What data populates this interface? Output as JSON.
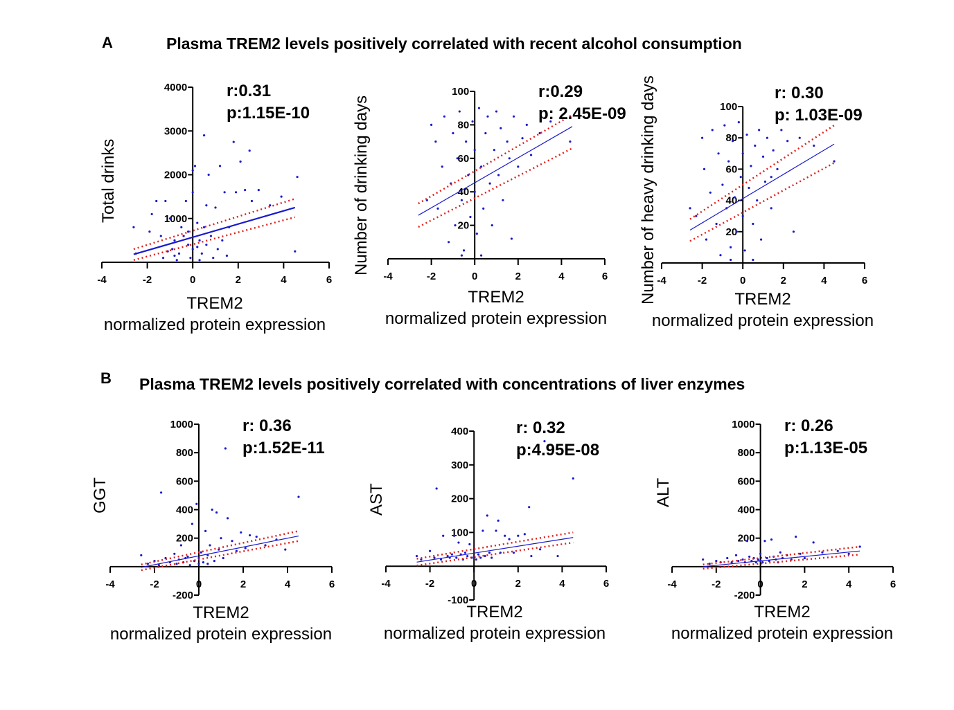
{
  "panels": {
    "A": {
      "letter": "A",
      "title": "Plasma TREM2 levels positively correlated with recent alcohol consumption"
    },
    "B": {
      "letter": "B",
      "title": "Plasma TREM2 levels positively correlated with concentrations of liver enzymes"
    }
  },
  "colors": {
    "points": "#1a1acc",
    "fit_line": "#1a1acc",
    "ci": "#e0201b",
    "axis": "#000000"
  },
  "chart_data": [
    {
      "type": "scatter",
      "panel": "A",
      "ylabel": "Total drinks",
      "xlabel": [
        "TREM2",
        "normalized protein expression"
      ],
      "stat_r": "r:0.31",
      "stat_p": "p:1.15E-10",
      "xlim": [
        -4,
        6
      ],
      "xticks": [
        -4,
        -2,
        0,
        2,
        4,
        6
      ],
      "ylim": [
        0,
        4000
      ],
      "yticks": [
        1000,
        2000,
        3000,
        4000
      ],
      "fit": [
        [
          -2.6,
          180
        ],
        [
          4.5,
          1250
        ]
      ],
      "ci_upper": [
        [
          -2.6,
          300
        ],
        [
          4.5,
          1450
        ]
      ],
      "ci_lower": [
        [
          -2.6,
          50
        ],
        [
          4.5,
          1030
        ]
      ],
      "points": [
        [
          -2.6,
          800
        ],
        [
          -2.5,
          200
        ],
        [
          -1.9,
          700
        ],
        [
          -1.8,
          1100
        ],
        [
          -1.6,
          1400
        ],
        [
          -1.4,
          600
        ],
        [
          -1.2,
          1400
        ],
        [
          -1,
          1000
        ],
        [
          -0.9,
          300
        ],
        [
          -0.8,
          500
        ],
        [
          -0.6,
          200
        ],
        [
          -0.5,
          800
        ],
        [
          -0.3,
          1400
        ],
        [
          -0.2,
          400
        ],
        [
          -0.1,
          100
        ],
        [
          0,
          2100
        ],
        [
          0,
          1600
        ],
        [
          0,
          300
        ],
        [
          0.1,
          2200
        ],
        [
          0.2,
          900
        ],
        [
          0.3,
          500
        ],
        [
          0.4,
          200
        ],
        [
          0.5,
          2900
        ],
        [
          0.6,
          1300
        ],
        [
          0.7,
          2000
        ],
        [
          0.8,
          600
        ],
        [
          1,
          1250
        ],
        [
          1.1,
          300
        ],
        [
          1.2,
          2200
        ],
        [
          1.4,
          1600
        ],
        [
          1.6,
          800
        ],
        [
          1.8,
          2750
        ],
        [
          1.9,
          1600
        ],
        [
          2.1,
          2300
        ],
        [
          2.3,
          1650
        ],
        [
          2.5,
          2550
        ],
        [
          2.6,
          1400
        ],
        [
          2.9,
          1650
        ],
        [
          3.4,
          1300
        ],
        [
          3.9,
          1500
        ],
        [
          4.5,
          250
        ],
        [
          4.6,
          1950
        ],
        [
          -0.7,
          50
        ],
        [
          0.3,
          50
        ],
        [
          -1.3,
          100
        ],
        [
          0.9,
          100
        ],
        [
          1.5,
          150
        ],
        [
          -0.4,
          600
        ],
        [
          0.6,
          400
        ],
        [
          -1.1,
          250
        ],
        [
          -0.2,
          700
        ],
        [
          0.2,
          350
        ],
        [
          -0.8,
          150
        ],
        [
          0.5,
          800
        ],
        [
          1.3,
          500
        ]
      ]
    },
    {
      "type": "scatter",
      "panel": "A",
      "ylabel": "Number of drinking days",
      "xlabel": [
        "TREM2",
        "normalized protein expression"
      ],
      "stat_r": "r:0.29",
      "stat_p": "p: 2.45E-09",
      "xlim": [
        -4,
        6
      ],
      "xticks": [
        -4,
        -2,
        0,
        2,
        4,
        6
      ],
      "ylim": [
        0,
        100
      ],
      "yticks": [
        20,
        40,
        60,
        80,
        100
      ],
      "fit": [
        [
          -2.6,
          26
        ],
        [
          4.5,
          79
        ]
      ],
      "ci_upper": [
        [
          -2.6,
          33
        ],
        [
          4.5,
          86
        ]
      ],
      "ci_lower": [
        [
          -2.6,
          19
        ],
        [
          4.5,
          66
        ]
      ],
      "points": [
        [
          -2,
          80
        ],
        [
          -1.8,
          70
        ],
        [
          -1.7,
          30
        ],
        [
          -1.5,
          55
        ],
        [
          -1.4,
          85
        ],
        [
          -1.2,
          10
        ],
        [
          -1.1,
          45
        ],
        [
          -1,
          75
        ],
        [
          -0.9,
          20
        ],
        [
          -0.8,
          60
        ],
        [
          -0.7,
          88
        ],
        [
          -0.6,
          35
        ],
        [
          -0.5,
          5
        ],
        [
          -0.4,
          70
        ],
        [
          -0.3,
          50
        ],
        [
          -0.2,
          25
        ],
        [
          -0.1,
          82
        ],
        [
          0,
          65
        ],
        [
          0,
          40
        ],
        [
          0.1,
          15
        ],
        [
          0.2,
          90
        ],
        [
          0.3,
          55
        ],
        [
          0.4,
          30
        ],
        [
          0.5,
          75
        ],
        [
          0.6,
          85
        ],
        [
          0.7,
          45
        ],
        [
          0.8,
          20
        ],
        [
          0.9,
          65
        ],
        [
          1,
          88
        ],
        [
          1.1,
          50
        ],
        [
          1.2,
          78
        ],
        [
          1.3,
          35
        ],
        [
          1.5,
          70
        ],
        [
          1.6,
          60
        ],
        [
          1.8,
          85
        ],
        [
          2,
          55
        ],
        [
          2.2,
          72
        ],
        [
          2.4,
          80
        ],
        [
          2.6,
          62
        ],
        [
          3,
          75
        ],
        [
          3.5,
          82
        ],
        [
          4.4,
          70
        ],
        [
          -2.2,
          35
        ],
        [
          0.3,
          2
        ],
        [
          -0.6,
          2
        ],
        [
          1.7,
          12
        ]
      ]
    },
    {
      "type": "scatter",
      "panel": "A",
      "ylabel": "Number of heavy drinking days",
      "xlabel": [
        "TREM2",
        "normalized protein expression"
      ],
      "stat_r": "r: 0.30",
      "stat_p": "p: 1.03E-09",
      "xlim": [
        -4,
        6
      ],
      "xticks": [
        -4,
        -2,
        0,
        2,
        4,
        6
      ],
      "ylim": [
        0,
        100
      ],
      "yticks": [
        20,
        40,
        60,
        80,
        100
      ],
      "fit": [
        [
          -2.6,
          21
        ],
        [
          4.5,
          76
        ]
      ],
      "ci_upper": [
        [
          -2.6,
          28
        ],
        [
          4.5,
          88
        ]
      ],
      "ci_lower": [
        [
          -2.6,
          14
        ],
        [
          4.5,
          64
        ]
      ],
      "points": [
        [
          -2.6,
          35
        ],
        [
          -2.3,
          30
        ],
        [
          -2,
          80
        ],
        [
          -1.9,
          60
        ],
        [
          -1.8,
          15
        ],
        [
          -1.6,
          45
        ],
        [
          -1.5,
          85
        ],
        [
          -1.3,
          25
        ],
        [
          -1.2,
          70
        ],
        [
          -1.1,
          5
        ],
        [
          -1,
          50
        ],
        [
          -0.9,
          88
        ],
        [
          -0.8,
          35
        ],
        [
          -0.7,
          65
        ],
        [
          -0.6,
          10
        ],
        [
          -0.5,
          78
        ],
        [
          -0.4,
          42
        ],
        [
          -0.3,
          20
        ],
        [
          -0.2,
          90
        ],
        [
          -0.1,
          55
        ],
        [
          0,
          70
        ],
        [
          0,
          30
        ],
        [
          0.1,
          8
        ],
        [
          0.2,
          82
        ],
        [
          0.3,
          48
        ],
        [
          0.4,
          62
        ],
        [
          0.5,
          25
        ],
        [
          0.6,
          75
        ],
        [
          0.7,
          40
        ],
        [
          0.8,
          85
        ],
        [
          0.9,
          15
        ],
        [
          1,
          68
        ],
        [
          1.1,
          52
        ],
        [
          1.2,
          80
        ],
        [
          1.4,
          35
        ],
        [
          1.5,
          72
        ],
        [
          1.7,
          60
        ],
        [
          1.9,
          85
        ],
        [
          2.2,
          78
        ],
        [
          2.5,
          20
        ],
        [
          2.8,
          80
        ],
        [
          3.5,
          75
        ],
        [
          4.5,
          65
        ],
        [
          -0.6,
          2
        ],
        [
          0.5,
          2
        ],
        [
          1.4,
          55
        ]
      ]
    },
    {
      "type": "scatter",
      "panel": "B",
      "ylabel": "GGT",
      "xlabel": [
        "TREM2",
        "normalized protein expression"
      ],
      "stat_r": "r: 0.36",
      "stat_p": "p:1.52E-11",
      "xlim": [
        -4,
        6
      ],
      "xticks": [
        -4,
        -2,
        0,
        2,
        4,
        6
      ],
      "ylim": [
        -200,
        1000
      ],
      "yticks": [
        -200,
        200,
        400,
        600,
        800,
        1000
      ],
      "fit": [
        [
          -2.6,
          -5
        ],
        [
          4.5,
          215
        ]
      ],
      "ci_upper": [
        [
          -2.6,
          15
        ],
        [
          4.5,
          250
        ]
      ],
      "ci_lower": [
        [
          -2.6,
          -25
        ],
        [
          4.5,
          180
        ]
      ],
      "points": [
        [
          -2.6,
          80
        ],
        [
          -2.3,
          20
        ],
        [
          -2,
          40
        ],
        [
          -1.8,
          10
        ],
        [
          -1.7,
          520
        ],
        [
          -1.5,
          60
        ],
        [
          -1.3,
          30
        ],
        [
          -1.1,
          90
        ],
        [
          -1,
          20
        ],
        [
          -0.9,
          50
        ],
        [
          -0.8,
          150
        ],
        [
          -0.7,
          30
        ],
        [
          -0.5,
          70
        ],
        [
          -0.4,
          10
        ],
        [
          -0.3,
          300
        ],
        [
          -0.2,
          40
        ],
        [
          -0.1,
          440
        ],
        [
          0,
          60
        ],
        [
          0,
          20
        ],
        [
          0.1,
          100
        ],
        [
          0.2,
          30
        ],
        [
          0.3,
          250
        ],
        [
          0.4,
          80
        ],
        [
          0.5,
          150
        ],
        [
          0.6,
          400
        ],
        [
          0.7,
          40
        ],
        [
          0.8,
          380
        ],
        [
          0.9,
          120
        ],
        [
          1,
          200
        ],
        [
          1.1,
          60
        ],
        [
          1.2,
          830
        ],
        [
          1.3,
          340
        ],
        [
          1.5,
          180
        ],
        [
          1.7,
          110
        ],
        [
          1.9,
          240
        ],
        [
          2.1,
          130
        ],
        [
          2.3,
          220
        ],
        [
          2.6,
          210
        ],
        [
          3,
          150
        ],
        [
          3.5,
          190
        ],
        [
          3.9,
          120
        ],
        [
          4.5,
          490
        ],
        [
          0.4,
          20
        ],
        [
          -0.6,
          60
        ]
      ]
    },
    {
      "type": "scatter",
      "panel": "B",
      "ylabel": "AST",
      "xlabel": [
        "TREM2",
        "normalized protein expression"
      ],
      "stat_r": "r: 0.32",
      "stat_p": "p:4.95E-08",
      "xlim": [
        -4,
        6
      ],
      "xticks": [
        -4,
        -2,
        0,
        2,
        4,
        6
      ],
      "ylim": [
        -100,
        400
      ],
      "yticks": [
        -100,
        100,
        200,
        300,
        400
      ],
      "fit": [
        [
          -2.6,
          12
        ],
        [
          4.5,
          85
        ]
      ],
      "ci_upper": [
        [
          -2.6,
          22
        ],
        [
          4.5,
          100
        ]
      ],
      "ci_lower": [
        [
          -2.6,
          2
        ],
        [
          4.5,
          70
        ]
      ],
      "points": [
        [
          -2.6,
          30
        ],
        [
          -2.4,
          20
        ],
        [
          -2,
          45
        ],
        [
          -1.8,
          25
        ],
        [
          -1.7,
          230
        ],
        [
          -1.5,
          20
        ],
        [
          -1.4,
          90
        ],
        [
          -1.2,
          30
        ],
        [
          -1.1,
          25
        ],
        [
          -1,
          35
        ],
        [
          -0.9,
          90
        ],
        [
          -0.8,
          25
        ],
        [
          -0.7,
          70
        ],
        [
          -0.6,
          35
        ],
        [
          -0.5,
          20
        ],
        [
          -0.4,
          40
        ],
        [
          -0.3,
          30
        ],
        [
          -0.2,
          65
        ],
        [
          -0.1,
          25
        ],
        [
          0,
          30
        ],
        [
          0,
          50
        ],
        [
          0.1,
          20
        ],
        [
          0.2,
          35
        ],
        [
          0.3,
          25
        ],
        [
          0.4,
          105
        ],
        [
          0.5,
          30
        ],
        [
          0.6,
          150
        ],
        [
          0.7,
          40
        ],
        [
          0.8,
          25
        ],
        [
          1,
          105
        ],
        [
          1.1,
          135
        ],
        [
          1.2,
          40
        ],
        [
          1.4,
          90
        ],
        [
          1.6,
          80
        ],
        [
          1.8,
          40
        ],
        [
          2,
          90
        ],
        [
          2.3,
          95
        ],
        [
          2.5,
          175
        ],
        [
          2.6,
          30
        ],
        [
          3,
          50
        ],
        [
          3.2,
          370
        ],
        [
          3.8,
          30
        ],
        [
          4.5,
          260
        ]
      ]
    },
    {
      "type": "scatter",
      "panel": "B",
      "ylabel": "ALT",
      "xlabel": [
        "TREM2",
        "normalized protein expression"
      ],
      "stat_r": "r: 0.26",
      "stat_p": "p:1.13E-05",
      "xlim": [
        -4,
        6
      ],
      "xticks": [
        -4,
        -2,
        0,
        2,
        4,
        6
      ],
      "ylim": [
        -200,
        1000
      ],
      "yticks": [
        -200,
        200,
        400,
        600,
        800,
        1000
      ],
      "fit": [
        [
          -2.6,
          0
        ],
        [
          4.5,
          110
        ]
      ],
      "ci_upper": [
        [
          -2.6,
          15
        ],
        [
          4.5,
          140
        ]
      ],
      "ci_lower": [
        [
          -2.6,
          -15
        ],
        [
          4.5,
          85
        ]
      ],
      "points": [
        [
          -2.6,
          50
        ],
        [
          -2.3,
          20
        ],
        [
          -2,
          40
        ],
        [
          -1.8,
          30
        ],
        [
          -1.5,
          60
        ],
        [
          -1.3,
          30
        ],
        [
          -1.1,
          80
        ],
        [
          -1,
          40
        ],
        [
          -0.8,
          50
        ],
        [
          -0.7,
          30
        ],
        [
          -0.5,
          70
        ],
        [
          -0.4,
          40
        ],
        [
          -0.3,
          60
        ],
        [
          -0.2,
          30
        ],
        [
          -0.1,
          50
        ],
        [
          0,
          40
        ],
        [
          0,
          90
        ],
        [
          0.1,
          30
        ],
        [
          0.2,
          180
        ],
        [
          0.3,
          60
        ],
        [
          0.4,
          40
        ],
        [
          0.5,
          190
        ],
        [
          0.6,
          70
        ],
        [
          0.7,
          50
        ],
        [
          0.8,
          30
        ],
        [
          0.9,
          100
        ],
        [
          1,
          60
        ],
        [
          1.2,
          80
        ],
        [
          1.4,
          50
        ],
        [
          1.6,
          210
        ],
        [
          1.8,
          90
        ],
        [
          2,
          60
        ],
        [
          2.4,
          170
        ],
        [
          2.8,
          100
        ],
        [
          3.5,
          110
        ],
        [
          4,
          90
        ],
        [
          4.5,
          140
        ],
        [
          -0.6,
          180
        ]
      ]
    }
  ]
}
